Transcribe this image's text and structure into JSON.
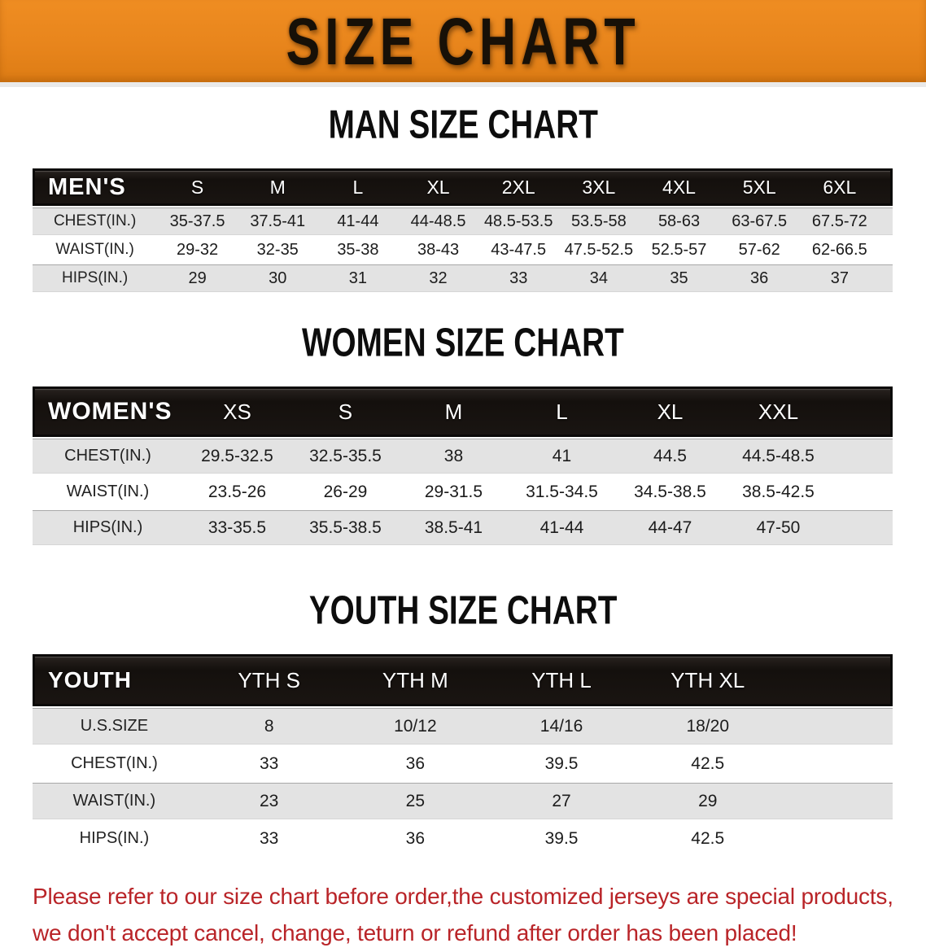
{
  "banner": {
    "title": "SIZE CHART"
  },
  "colors": {
    "banner_orange": "#E8851C",
    "table_header_black": "#17120F",
    "stripe_gray": "#E3E3E3",
    "disclaimer_red": "#B92428"
  },
  "sections": [
    {
      "heading": "MAN SIZE CHART",
      "table": {
        "header_label": "MEN'S",
        "columns": [
          "S",
          "M",
          "L",
          "XL",
          "2XL",
          "3XL",
          "4XL",
          "5XL",
          "6XL"
        ],
        "rows": [
          {
            "label": "CHEST(IN.)",
            "values": [
              "35-37.5",
              "37.5-41",
              "41-44",
              "44-48.5",
              "48.5-53.5",
              "53.5-58",
              "58-63",
              "63-67.5",
              "67.5-72"
            ]
          },
          {
            "label": "WAIST(IN.)",
            "values": [
              "29-32",
              "32-35",
              "35-38",
              "38-43",
              "43-47.5",
              "47.5-52.5",
              "52.5-57",
              "57-62",
              "62-66.5"
            ]
          },
          {
            "label": "HIPS(IN.)",
            "values": [
              "29",
              "30",
              "31",
              "32",
              "33",
              "34",
              "35",
              "36",
              "37"
            ]
          }
        ]
      }
    },
    {
      "heading": "WOMEN SIZE CHART",
      "table": {
        "header_label": "WOMEN'S",
        "columns": [
          "XS",
          "S",
          "M",
          "L",
          "XL",
          "XXL"
        ],
        "rows": [
          {
            "label": "CHEST(IN.)",
            "values": [
              "29.5-32.5",
              "32.5-35.5",
              "38",
              "41",
              "44.5",
              "44.5-48.5"
            ]
          },
          {
            "label": "WAIST(IN.)",
            "values": [
              "23.5-26",
              "26-29",
              "29-31.5",
              "31.5-34.5",
              "34.5-38.5",
              "38.5-42.5"
            ]
          },
          {
            "label": "HIPS(IN.)",
            "values": [
              "33-35.5",
              "35.5-38.5",
              "38.5-41",
              "41-44",
              "44-47",
              "47-50"
            ]
          }
        ]
      }
    },
    {
      "heading": "YOUTH SIZE CHART",
      "table": {
        "header_label": "YOUTH",
        "columns": [
          "YTH S",
          "YTH M",
          "YTH L",
          "YTH XL"
        ],
        "rows": [
          {
            "label": "U.S.SIZE",
            "values": [
              "8",
              "10/12",
              "14/16",
              "18/20"
            ]
          },
          {
            "label": "CHEST(IN.)",
            "values": [
              "33",
              "36",
              "39.5",
              "42.5"
            ]
          },
          {
            "label": "WAIST(IN.)",
            "values": [
              "23",
              "25",
              "27",
              "29"
            ]
          },
          {
            "label": "HIPS(IN.)",
            "values": [
              "33",
              "36",
              "39.5",
              "42.5"
            ]
          }
        ]
      }
    }
  ],
  "disclaimer": {
    "line1": "Please refer to our size chart before order,the customized jerseys are special products,",
    "line2": "we don't accept cancel, change, teturn or refund after order has been placed!"
  }
}
